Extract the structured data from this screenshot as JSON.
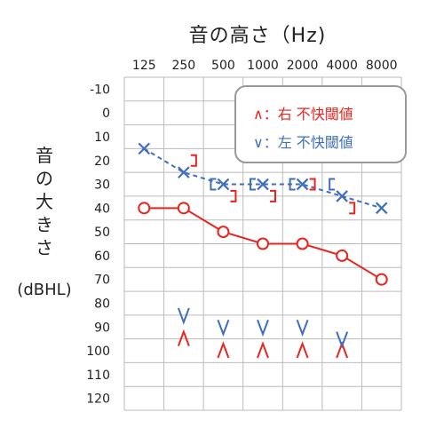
{
  "chart_data": {
    "type": "line",
    "title": "音の高さ（Hz)",
    "ylabel": "音の大きさ",
    "ylabel_unit": "(dBHL)",
    "x_ticks": [
      "125",
      "250",
      "500",
      "1000",
      "2000",
      "4000",
      "8000"
    ],
    "y_ticks": [
      "-10",
      "0",
      "10",
      "20",
      "30",
      "40",
      "50",
      "60",
      "70",
      "80",
      "90",
      "100",
      "110",
      "120"
    ],
    "ylim": [
      120,
      -10
    ],
    "y_inverted": true,
    "grid": true,
    "series": [
      {
        "marker": "circle",
        "color": "#e8241f",
        "line": "solid",
        "points": [
          {
            "x": "125",
            "y": 40
          },
          {
            "x": "250",
            "y": 40
          },
          {
            "x": "500",
            "y": 50
          },
          {
            "x": "1000",
            "y": 55
          },
          {
            "x": "2000",
            "y": 55
          },
          {
            "x": "4000",
            "y": 60
          },
          {
            "x": "8000",
            "y": 70
          }
        ]
      },
      {
        "marker": "cross",
        "color": "#3f6ebf",
        "line": "dashed",
        "points": [
          {
            "x": "125",
            "y": 15
          },
          {
            "x": "250",
            "y": 25
          },
          {
            "x": "500",
            "y": 30
          },
          {
            "x": "1000",
            "y": 30
          },
          {
            "x": "2000",
            "y": 30
          },
          {
            "x": "4000",
            "y": 35
          },
          {
            "x": "8000",
            "y": 40
          }
        ]
      }
    ],
    "bone_conduction": {
      "right": {
        "marker": "[",
        "color": "#e8241f",
        "points": [
          {
            "x": "250",
            "y": 20
          },
          {
            "x": "500",
            "y": 35
          },
          {
            "x": "1000",
            "y": 35
          },
          {
            "x": "2000",
            "y": 30
          },
          {
            "x": "4000",
            "y": 40
          }
        ]
      },
      "left": {
        "marker": "]",
        "color": "#3f6ebf",
        "points": [
          {
            "x": "500",
            "y": 30
          },
          {
            "x": "1000",
            "y": 30
          },
          {
            "x": "2000",
            "y": 30
          },
          {
            "x": "4000",
            "y": 30
          }
        ]
      }
    },
    "discomfort_thresholds": {
      "right": {
        "marker": "∧",
        "color": "#e8241f",
        "points": [
          {
            "x": "250",
            "y": 95
          },
          {
            "x": "500",
            "y": 100
          },
          {
            "x": "1000",
            "y": 100
          },
          {
            "x": "2000",
            "y": 100
          },
          {
            "x": "4000",
            "y": 100
          }
        ]
      },
      "left": {
        "marker": "∨",
        "color": "#3f6ebf",
        "points": [
          {
            "x": "250",
            "y": 85
          },
          {
            "x": "500",
            "y": 90
          },
          {
            "x": "1000",
            "y": 90
          },
          {
            "x": "2000",
            "y": 90
          },
          {
            "x": "4000",
            "y": 95
          }
        ]
      }
    },
    "legend": {
      "position": "top-right",
      "items": [
        {
          "symbol": "∧",
          "text": "：右 不快閾値",
          "color": "#e8241f"
        },
        {
          "symbol": "∨",
          "text": "：左 不快閾値",
          "color": "#3f6ebf"
        }
      ]
    }
  }
}
